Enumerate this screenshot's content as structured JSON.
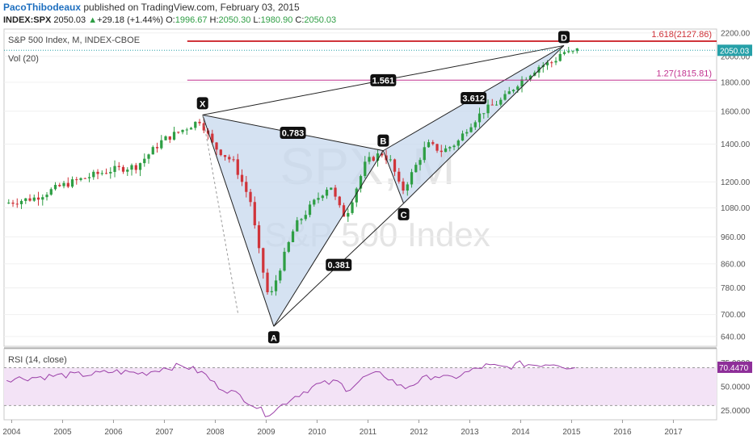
{
  "header": {
    "author": "PacoThibodeaux",
    "published": "published on TradingView.com, February 03, 2015",
    "symbol": "INDEX:SPX",
    "last": "2050.03",
    "change": "+29.18 (+1.44%)",
    "o_label": "O:",
    "o": "1996.67",
    "h_label": "H:",
    "h": "2050.30",
    "l_label": "L:",
    "l": "1980.90",
    "c_label": "C:",
    "c": "2050.03"
  },
  "legend": {
    "main": "S&P 500 Index, M, INDEX-CBOE",
    "vol": "Vol (20)",
    "rsi": "RSI (14, close)"
  },
  "watermark": {
    "symbol": "SPX, M",
    "name": "S&P 500 Index"
  },
  "colors": {
    "up": "#2e9e44",
    "down": "#d0343a",
    "pattern_fill": "#c7d8ee",
    "fib_red": "#d0343a",
    "fib_pink": "#c2328f",
    "rsi_line": "#9b3fa8",
    "rsi_fill": "#f3e3f6",
    "price_badge": "#26a0a8",
    "rsi_badge": "#8e2f99"
  },
  "chart_data": {
    "type": "candlestick",
    "x_axis": {
      "labels": [
        "2004",
        "2005",
        "2006",
        "2007",
        "2008",
        "2009",
        "2010",
        "2011",
        "2012",
        "2013",
        "2014",
        "2015",
        "2016",
        "2017"
      ],
      "range": [
        2003.85,
        2017.85
      ]
    },
    "price_axis": {
      "scale": "log",
      "range": [
        615,
        2235
      ],
      "ticks": [
        "2200.00",
        "2000.00",
        "1800.00",
        "1600.00",
        "1400.00",
        "1200.00",
        "1080.00",
        "960.00",
        "860.00",
        "780.00",
        "700.00",
        "640.00"
      ],
      "current_value_label": "2050.03"
    },
    "rsi_axis": {
      "range": [
        15,
        90
      ],
      "ticks": [
        "75.0000",
        "50.0000",
        "25.0000"
      ],
      "current_value_label": "70.4470",
      "band": [
        30,
        70
      ]
    },
    "fib_lines": [
      {
        "label": "1.618(2127.86)",
        "value": 2127.86,
        "color": "#d0343a"
      },
      {
        "label": "1.27(1815.81)",
        "value": 1815.81,
        "color": "#c2328f"
      }
    ],
    "pattern": {
      "points": [
        {
          "label": "X",
          "x": 2007.75,
          "y": 1576
        },
        {
          "label": "A",
          "x": 2009.15,
          "y": 667
        },
        {
          "label": "B",
          "x": 2011.3,
          "y": 1363
        },
        {
          "label": "C",
          "x": 2011.7,
          "y": 1100
        },
        {
          "label": "D",
          "x": 2014.85,
          "y": 2090
        }
      ],
      "ratios": [
        {
          "label": "0.783",
          "from": "X",
          "to": "B"
        },
        {
          "label": "0.381",
          "from": "A",
          "to": "C"
        },
        {
          "label": "3.612",
          "from": "B",
          "to": "D"
        },
        {
          "label": "1.561",
          "from": "X",
          "to": "D"
        }
      ]
    },
    "anchors": [
      [
        2003.9,
        1100
      ],
      [
        2004.5,
        1125
      ],
      [
        2005.0,
        1180
      ],
      [
        2005.6,
        1230
      ],
      [
        2006.0,
        1260
      ],
      [
        2006.5,
        1280
      ],
      [
        2007.0,
        1420
      ],
      [
        2007.5,
        1500
      ],
      [
        2007.75,
        1545
      ],
      [
        2008.0,
        1390
      ],
      [
        2008.4,
        1300
      ],
      [
        2008.75,
        1100
      ],
      [
        2008.85,
        950
      ],
      [
        2009.1,
        740
      ],
      [
        2009.3,
        840
      ],
      [
        2009.6,
        1000
      ],
      [
        2010.0,
        1110
      ],
      [
        2010.3,
        1190
      ],
      [
        2010.45,
        1090
      ],
      [
        2010.6,
        1040
      ],
      [
        2011.0,
        1300
      ],
      [
        2011.3,
        1350
      ],
      [
        2011.5,
        1300
      ],
      [
        2011.7,
        1150
      ],
      [
        2011.9,
        1240
      ],
      [
        2012.2,
        1400
      ],
      [
        2012.5,
        1360
      ],
      [
        2012.8,
        1410
      ],
      [
        2013.0,
        1500
      ],
      [
        2013.3,
        1600
      ],
      [
        2013.7,
        1680
      ],
      [
        2014.0,
        1800
      ],
      [
        2014.4,
        1920
      ],
      [
        2014.7,
        1960
      ],
      [
        2014.85,
        2040
      ],
      [
        2015.05,
        2020
      ],
      [
        2015.1,
        2050
      ]
    ],
    "rsi_anchors": [
      [
        2003.9,
        58
      ],
      [
        2004.5,
        60
      ],
      [
        2005.0,
        62
      ],
      [
        2005.6,
        63
      ],
      [
        2006.0,
        66
      ],
      [
        2006.6,
        64
      ],
      [
        2007.0,
        70
      ],
      [
        2007.4,
        72
      ],
      [
        2007.8,
        63
      ],
      [
        2008.0,
        52
      ],
      [
        2008.5,
        40
      ],
      [
        2008.8,
        29
      ],
      [
        2009.0,
        21
      ],
      [
        2009.2,
        26
      ],
      [
        2009.5,
        38
      ],
      [
        2010.0,
        52
      ],
      [
        2010.4,
        55
      ],
      [
        2010.6,
        47
      ],
      [
        2011.0,
        62
      ],
      [
        2011.3,
        63
      ],
      [
        2011.7,
        48
      ],
      [
        2012.0,
        56
      ],
      [
        2012.3,
        62
      ],
      [
        2012.6,
        58
      ],
      [
        2013.0,
        66
      ],
      [
        2013.3,
        72
      ],
      [
        2013.7,
        70
      ],
      [
        2014.0,
        74
      ],
      [
        2014.3,
        73
      ],
      [
        2014.7,
        75
      ],
      [
        2014.9,
        71
      ],
      [
        2015.1,
        70
      ]
    ]
  }
}
